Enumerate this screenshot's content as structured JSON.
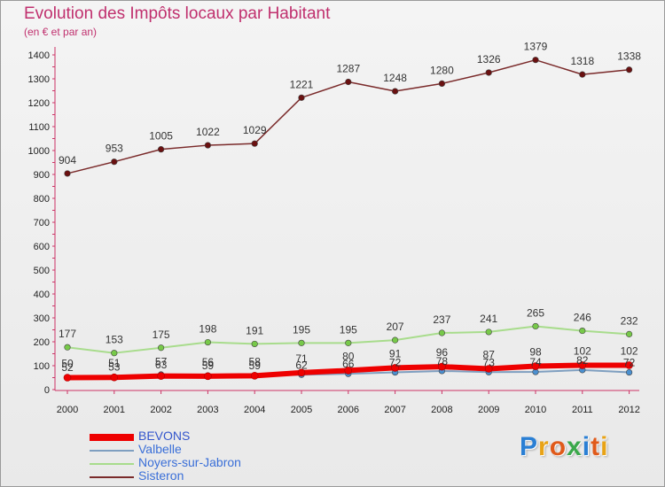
{
  "title": "Evolution des Impôts locaux par Habitant",
  "subtitle": "(en € et par an)",
  "logo": {
    "text": "Proxiti",
    "letter_colors": [
      "#2a7fd4",
      "#e8a316",
      "#e05a1a",
      "#3aa84a",
      "#2a7fd4",
      "#e05a1a",
      "#e8a316"
    ]
  },
  "chart_data": {
    "type": "line",
    "x": [
      "2000",
      "2001",
      "2002",
      "2003",
      "2004",
      "2005",
      "2006",
      "2007",
      "2008",
      "2009",
      "2010",
      "2011",
      "2012"
    ],
    "ylim": [
      0,
      1400
    ],
    "yticks": [
      0,
      100,
      200,
      300,
      400,
      500,
      600,
      700,
      800,
      900,
      1000,
      1100,
      1200,
      1300,
      1400
    ],
    "grid": false,
    "legend_position": "bottom-left",
    "series": [
      {
        "name": "BEVONS",
        "color": "#ee0000",
        "marker": "#ee0000",
        "width": 6,
        "values": [
          50,
          51,
          57,
          56,
          58,
          71,
          80,
          91,
          96,
          87,
          98,
          102,
          102
        ]
      },
      {
        "name": "Valbelle",
        "color": "#7f9fc0",
        "marker": "#4a90d0",
        "width": 2,
        "values": [
          52,
          53,
          63,
          59,
          59,
          62,
          66,
          72,
          78,
          73,
          74,
          82,
          72
        ]
      },
      {
        "name": "Noyers-sur-Jabron",
        "color": "#a8dc8c",
        "marker": "#77c949",
        "width": 2,
        "values": [
          177,
          153,
          175,
          198,
          191,
          195,
          195,
          207,
          237,
          241,
          265,
          246,
          232
        ]
      },
      {
        "name": "Sisteron",
        "color": "#7a2a2a",
        "marker": "#6a1010",
        "width": 1.5,
        "values": [
          904,
          953,
          1005,
          1022,
          1029,
          1221,
          1287,
          1248,
          1280,
          1326,
          1379,
          1318,
          1338
        ]
      }
    ]
  }
}
